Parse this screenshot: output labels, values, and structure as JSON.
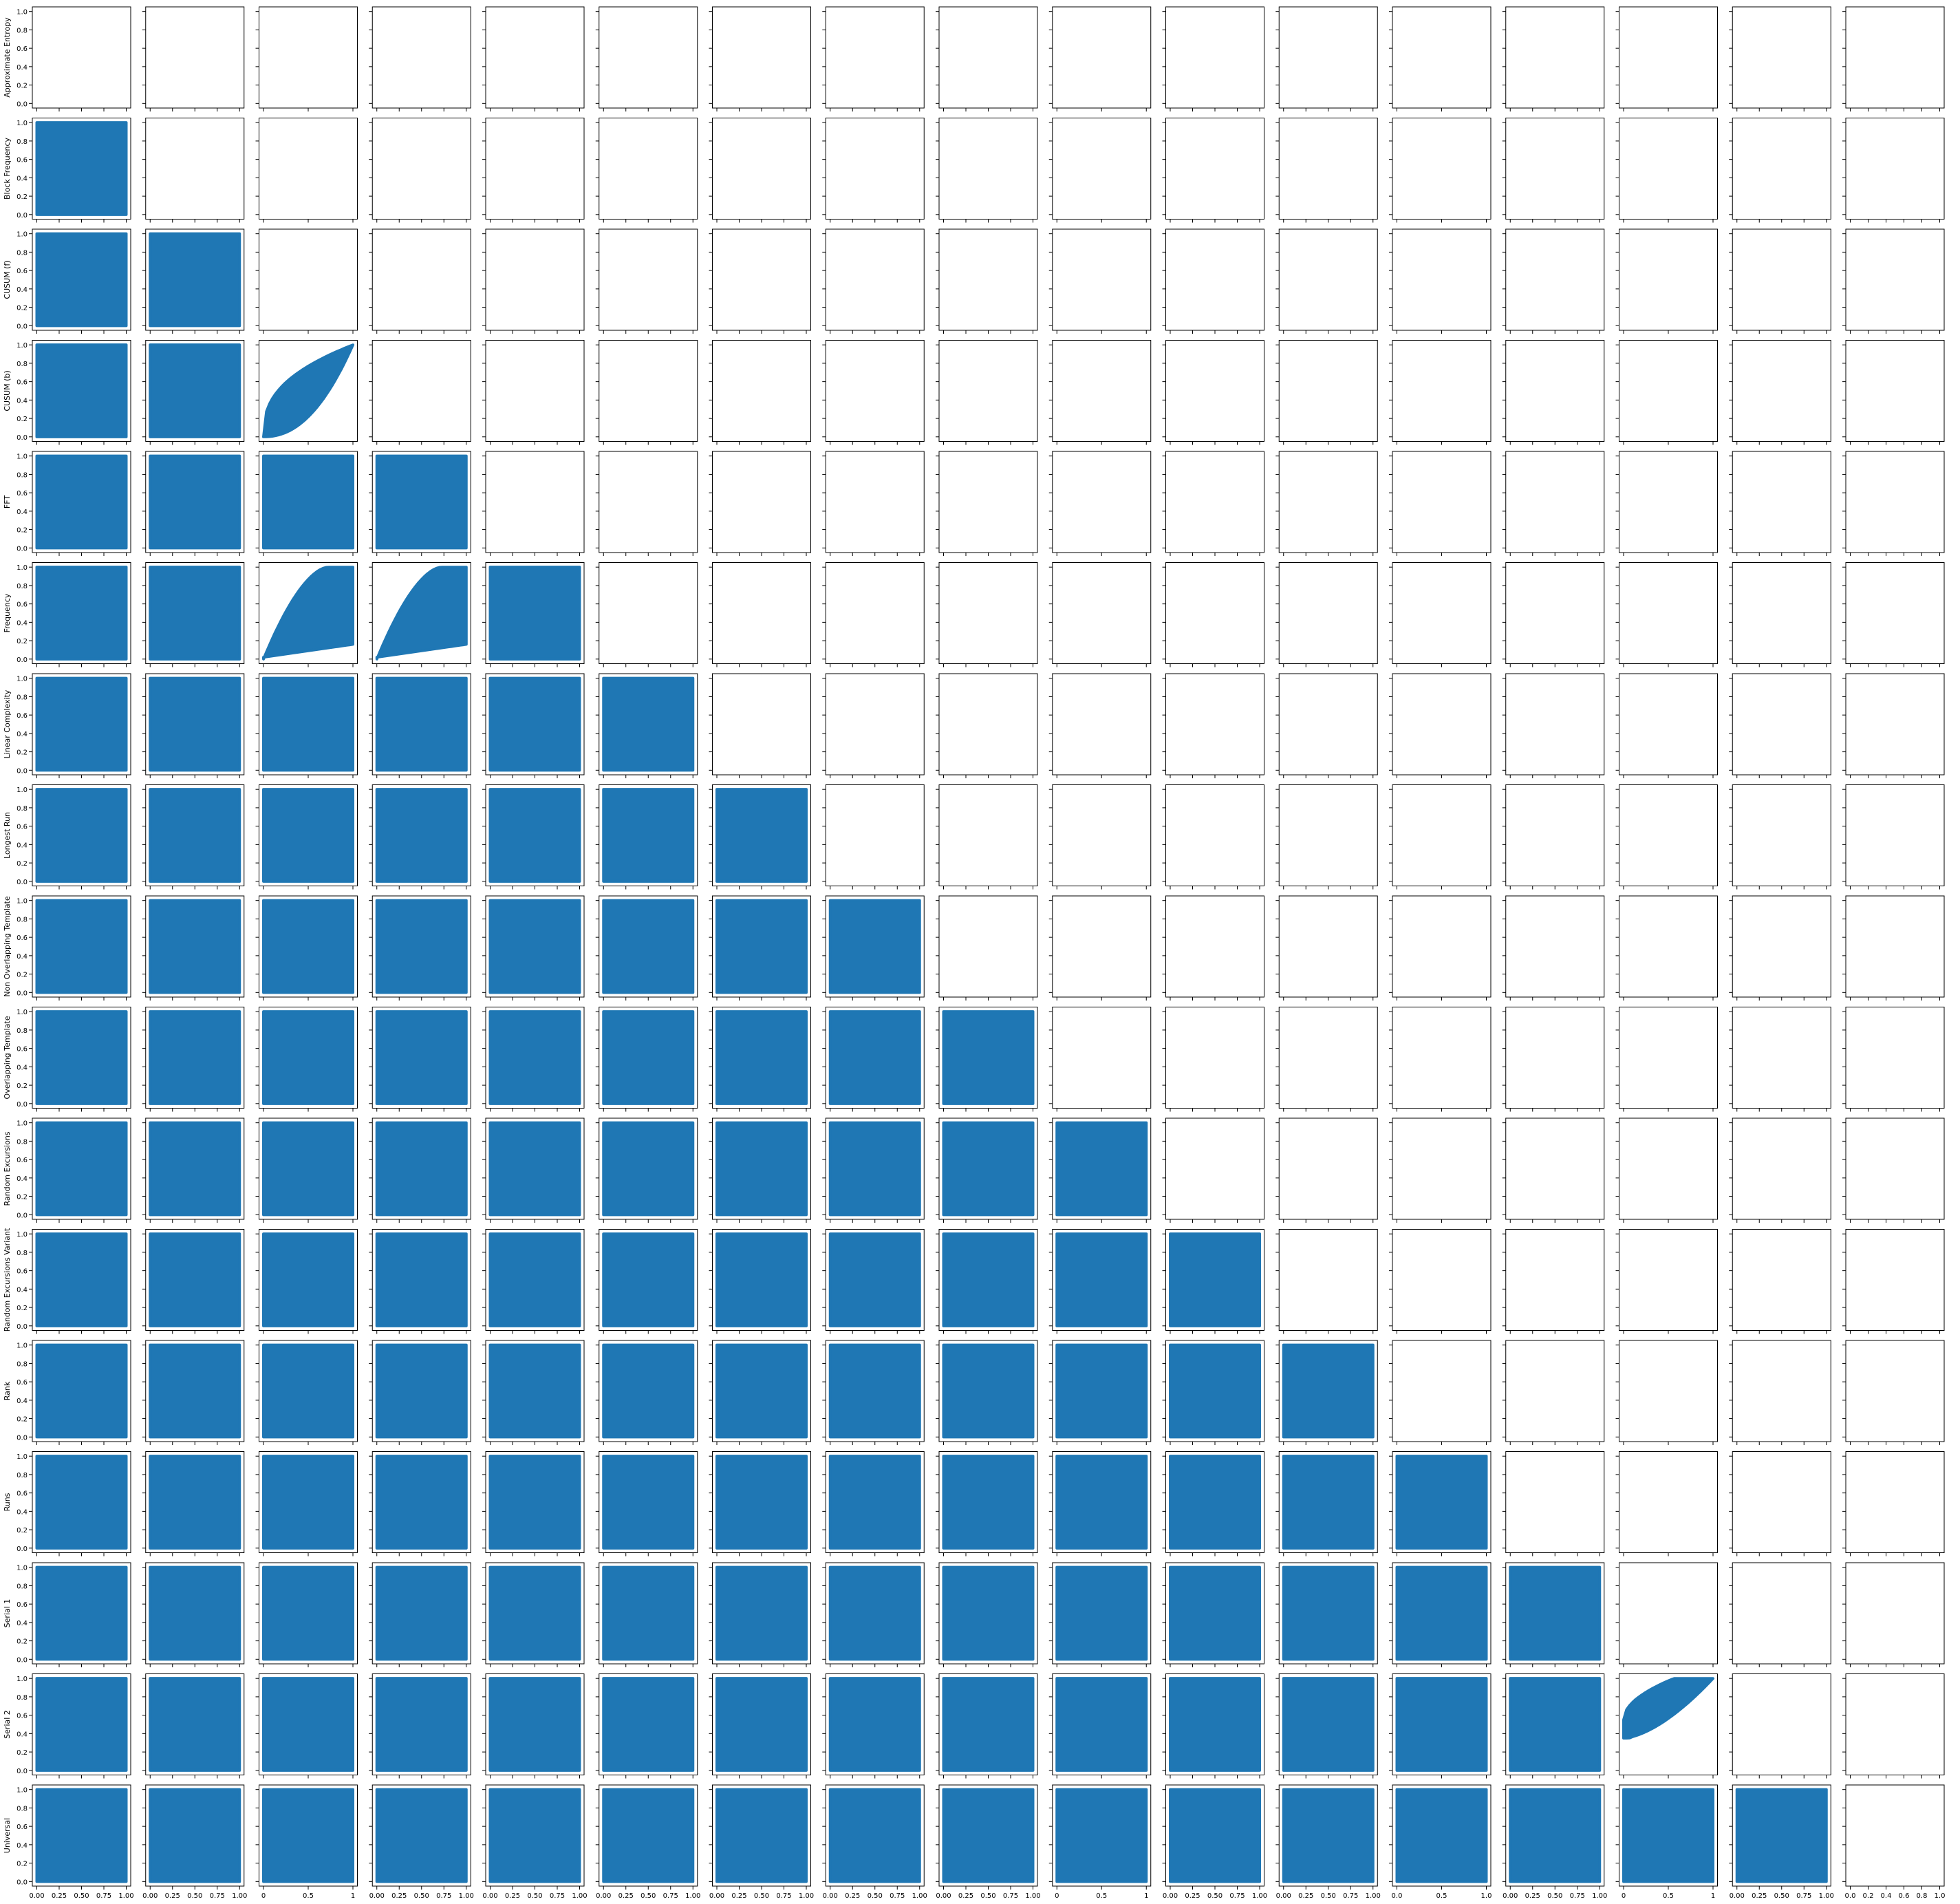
{
  "chart_data": {
    "type": "scatter",
    "layout": "scatter-matrix-lower-triangle",
    "title": "",
    "variables": [
      "Approximate Entropy",
      "Block Frequency",
      "CUSUM (f)",
      "CUSUM (b)",
      "FFT",
      "Frequency",
      "Linear Complexity",
      "Longest Run",
      "Non Overlapping Template",
      "Overlapping Template",
      "Random Excursions",
      "Random Excursions Variant",
      "Rank",
      "Runs",
      "Serial 1",
      "Serial 2",
      "Universal"
    ],
    "axis_range": [
      0.0,
      1.0
    ],
    "y_ticks": [
      "0.0",
      "0.2",
      "0.4",
      "0.6",
      "0.8",
      "1.0"
    ],
    "x_tick_sets": {
      "quarter": [
        "0.00",
        "0.25",
        "0.50",
        "0.75",
        "1.00"
      ],
      "half": [
        "0",
        "0.5",
        "1"
      ],
      "halfdec": [
        "0.0",
        "0.5",
        "1.0"
      ],
      "fifth": [
        "0.0",
        "0.2",
        "0.4",
        "0.6",
        "0.8",
        "1.0"
      ]
    },
    "x_tick_style_per_column": [
      "quarter",
      "quarter",
      "half",
      "quarter",
      "quarter",
      "quarter",
      "quarter",
      "quarter",
      "quarter",
      "half",
      "quarter",
      "quarter",
      "halfdec",
      "quarter",
      "half",
      "quarter",
      "fifth"
    ],
    "marker_color": "#1f77b4",
    "cells_shown": "lower triangle (row > column); diagonal and upper triangle are empty axes",
    "pair_distributions": {
      "default": "points fill the unit square [0,1] x [0,1] uniformly",
      "CUSUM (b) vs CUSUM (f)": "lens shaped band: lower edge rises from (0,0) to (1,1) curving below the diagonal, upper edge rises steeply toward 1",
      "Frequency vs CUSUM (f)": "wedge: points between y close to 0 and a concave upper edge rising from (0,0) to about 1.0 at x near 0.7",
      "Frequency vs CUSUM (b)": "wedge: points between y close to 0 and a concave upper edge rising from (0,0) to about 1.0 at x near 0.7",
      "Serial 2 vs Serial 1": "blob bounded below by a curve from (0,0.35) to (1,1) and above by a curve rising quickly toward 1"
    }
  }
}
